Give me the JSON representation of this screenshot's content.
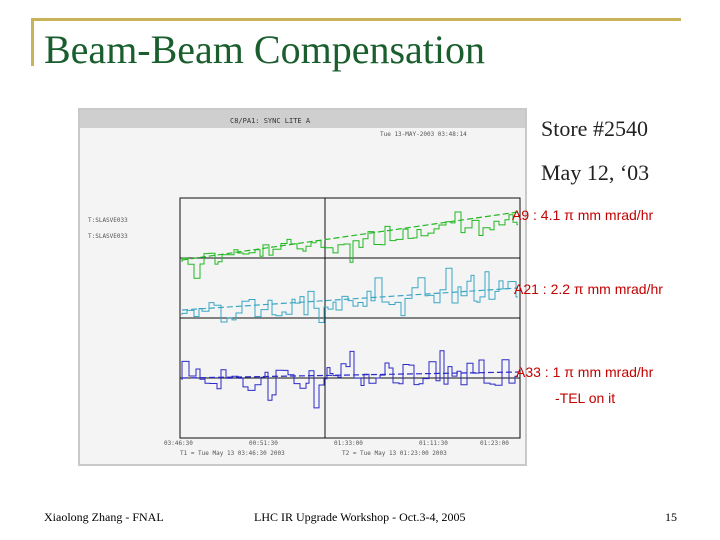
{
  "slide": {
    "title": "Beam-Beam Compensation",
    "store": "Store #2540",
    "date": "May 12, ‘03",
    "annotations": [
      "A9 : 4.1 π mm mrad/hr",
      "A21 : 2.2 π mm mrad/hr",
      "A33 : 1 π mm mrad/hr",
      "-TEL on it"
    ],
    "footer": {
      "author": "Xiaolong Zhang - FNAL",
      "event": "LHC IR Upgrade Workshop - Oct.3-4, 2005",
      "page": "15"
    }
  },
  "screen": {
    "window_title": "C8/PA1: SYNC LITE A",
    "timestamp": "Tue 13-MAY-2003 03:48:14",
    "legend": [
      "T:SLASVE033",
      "T:SLASVE033"
    ],
    "x_ticks": [
      "03:46:30",
      "00:51:30",
      "01:33:00",
      "01:11:30",
      "01:23:00"
    ],
    "time_range": [
      "T1 = Tue May 13 03:46:30 2003",
      "T2 = Tue May 13 01:23:00 2003"
    ]
  },
  "colors": {
    "green": "#1fb81f",
    "cyan": "#3aa6c4",
    "blue": "#2a2ac8",
    "title": "#1a5e2e",
    "accent": "#c40000",
    "rule": "#c9b257"
  }
}
